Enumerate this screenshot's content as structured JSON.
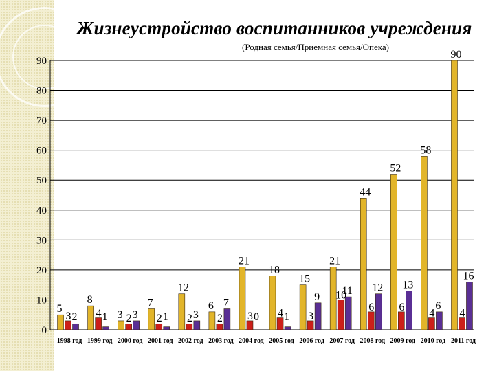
{
  "chart_data": {
    "type": "bar",
    "title": "Жизнеустройство воспитанников учреждения",
    "subtitle": "(Родная семья/Приемная семья/Опека)",
    "categories": [
      "1998 год",
      "1999 год",
      "2000 год",
      "2001 год",
      "2002 год",
      "2003 год",
      "2004 год",
      "2005 год",
      "2006 год",
      "2007 год",
      "2008 год",
      "2009 год",
      "2010 год",
      "2011 год"
    ],
    "series": [
      {
        "values": [
          5,
          8,
          3,
          7,
          12,
          6,
          21,
          18,
          15,
          21,
          44,
          52,
          58,
          90
        ],
        "color": "#e2b52a"
      },
      {
        "values": [
          3,
          4,
          2,
          2,
          2,
          2,
          3,
          4,
          3,
          10,
          6,
          6,
          4,
          4
        ],
        "color": "#cc1f1a"
      },
      {
        "values": [
          2,
          1,
          3,
          1,
          3,
          7,
          0,
          1,
          9,
          11,
          12,
          13,
          6,
          16
        ],
        "color": "#5a2f95"
      }
    ],
    "y_ticks": [
      "0",
      "10",
      "20",
      "30",
      "40",
      "50",
      "60",
      "70",
      "80",
      "90"
    ],
    "ylim": [
      0,
      90
    ],
    "grid": true,
    "legend": "none"
  }
}
